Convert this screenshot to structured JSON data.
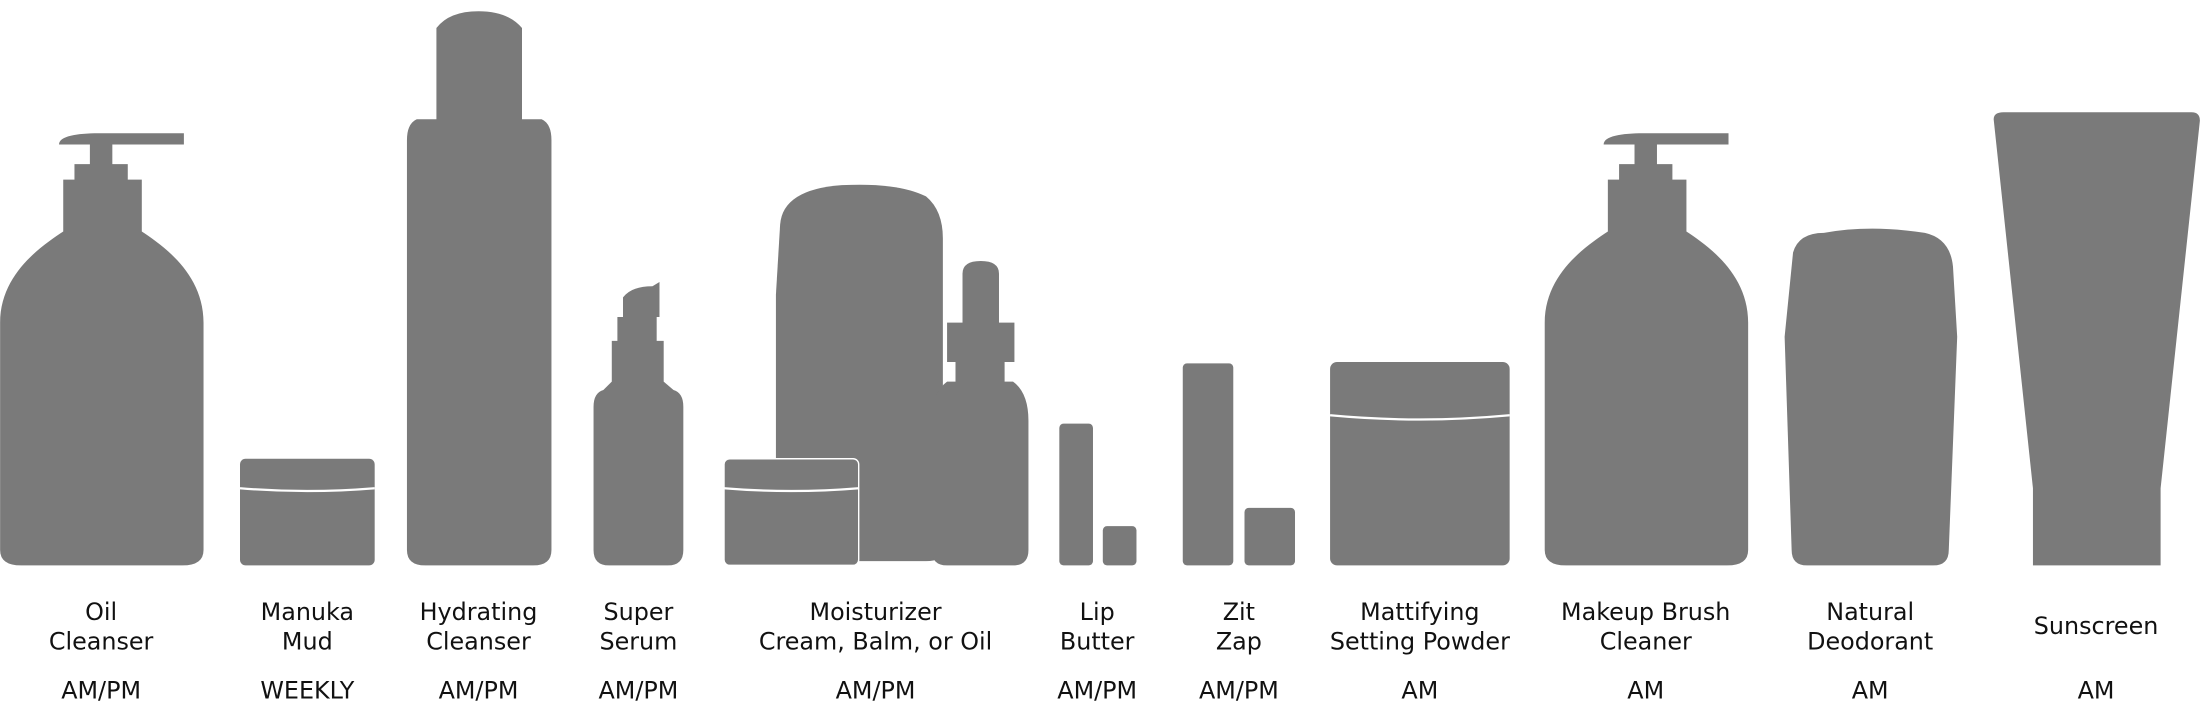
{
  "colors": {
    "silhouette": "#7a7a7a",
    "text": "#111111",
    "background": "#ffffff"
  },
  "products": [
    {
      "name_lines": [
        "Oil",
        "Cleanser"
      ],
      "schedule": "AM/PM",
      "icon": "pump-bottle-icon"
    },
    {
      "name_lines": [
        "Manuka",
        "Mud"
      ],
      "schedule": "WEEKLY",
      "icon": "jar-icon"
    },
    {
      "name_lines": [
        "Hydrating",
        "Cleanser"
      ],
      "schedule": "AM/PM",
      "icon": "tall-bottle-icon"
    },
    {
      "name_lines": [
        "Super",
        "Serum"
      ],
      "schedule": "AM/PM",
      "icon": "serum-pump-icon"
    },
    {
      "name_lines": [
        "Moisturizer",
        "Cream, Balm, or Oil"
      ],
      "schedule": "AM/PM",
      "icon": "moisturizer-group-icon"
    },
    {
      "name_lines": [
        "Lip",
        "Butter"
      ],
      "schedule": "AM/PM",
      "icon": "lip-balm-icon"
    },
    {
      "name_lines": [
        "Zit",
        "Zap"
      ],
      "schedule": "AM/PM",
      "icon": "stick-icon"
    },
    {
      "name_lines": [
        "Mattifying",
        "Setting Powder"
      ],
      "schedule": "AM",
      "icon": "powder-jar-icon"
    },
    {
      "name_lines": [
        "Makeup Brush",
        "Cleaner"
      ],
      "schedule": "AM",
      "icon": "pump-bottle-icon"
    },
    {
      "name_lines": [
        "Natural",
        "Deodorant"
      ],
      "schedule": "AM",
      "icon": "deodorant-icon"
    },
    {
      "name_lines": [
        "Sunscreen"
      ],
      "schedule": "AM",
      "icon": "tube-icon"
    }
  ]
}
